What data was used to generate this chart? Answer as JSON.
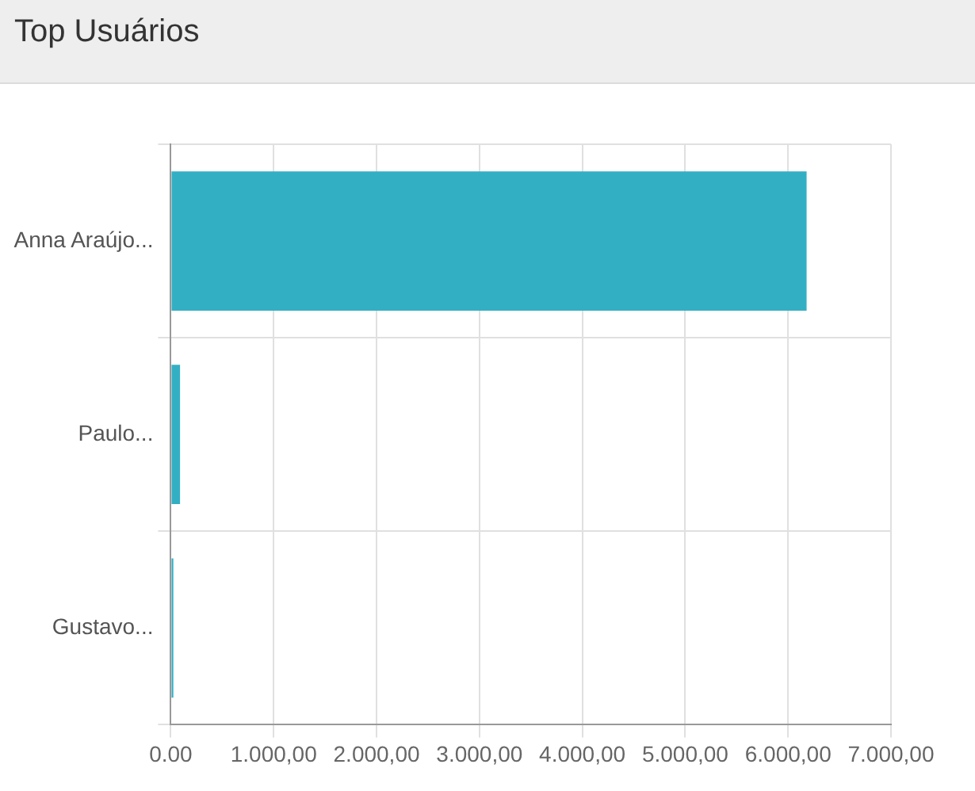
{
  "chart_data": {
    "type": "bar",
    "orientation": "horizontal",
    "title": "Top Usuários",
    "categories": [
      "Anna Araújo...",
      "Paulo...",
      "Gustavo..."
    ],
    "values": [
      6180,
      90,
      25
    ],
    "color": "#33afc4",
    "xlim": [
      0,
      7000
    ],
    "xticks": [
      {
        "value": 0,
        "label": "0.00"
      },
      {
        "value": 1000,
        "label": "1.000,00"
      },
      {
        "value": 2000,
        "label": "2.000,00"
      },
      {
        "value": 3000,
        "label": "3.000,00"
      },
      {
        "value": 4000,
        "label": "4.000,00"
      },
      {
        "value": 5000,
        "label": "5.000,00"
      },
      {
        "value": 6000,
        "label": "6.000,00"
      },
      {
        "value": 7000,
        "label": "7.000,00"
      }
    ],
    "grid": true
  }
}
